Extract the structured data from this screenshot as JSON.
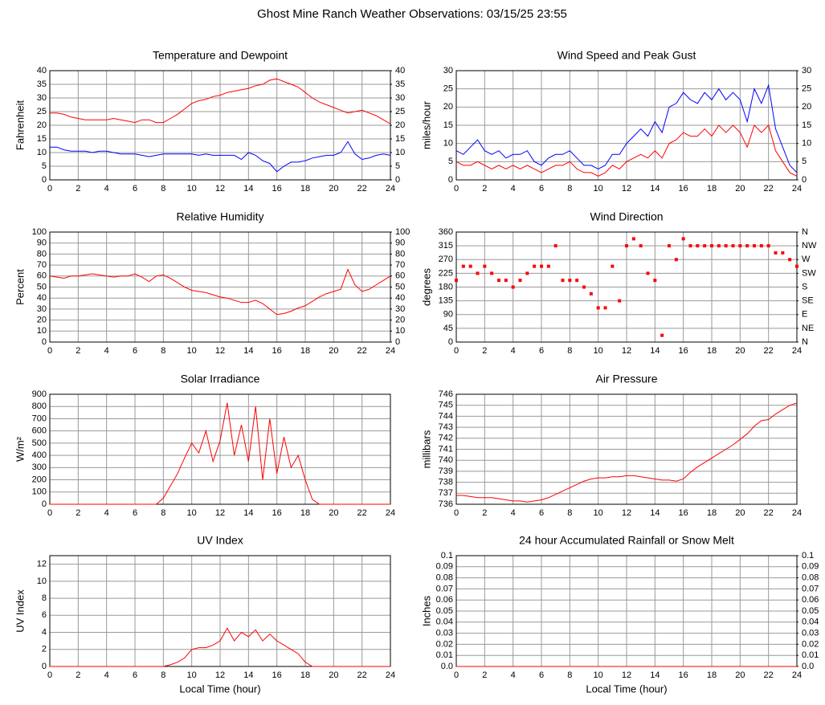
{
  "title": "Ghost Mine Ranch Weather Observations: 03/15/25 23:55",
  "chart_data": [
    {
      "type": "line",
      "title": "Temperature and Dewpoint",
      "y_label": "Fahrenheit",
      "x": [
        0,
        0.5,
        1,
        1.5,
        2,
        2.5,
        3,
        3.5,
        4,
        4.5,
        5,
        5.5,
        6,
        6.5,
        7,
        7.5,
        8,
        8.5,
        9,
        9.5,
        10,
        10.5,
        11,
        11.5,
        12,
        12.5,
        13,
        13.5,
        14,
        14.5,
        15,
        15.5,
        16,
        16.5,
        17,
        17.5,
        18,
        18.5,
        19,
        19.5,
        20,
        20.5,
        21,
        21.5,
        22,
        22.5,
        23,
        23.5,
        24
      ],
      "series": [
        {
          "color": "#ff0000",
          "values": [
            24.5,
            24.5,
            24,
            23,
            22.5,
            22,
            22,
            22,
            22,
            22.5,
            22,
            21.5,
            21,
            22,
            22,
            21,
            21,
            22.5,
            24,
            26,
            28,
            29,
            29.5,
            30.5,
            31,
            32,
            32.5,
            33,
            33.5,
            34.5,
            35,
            36.5,
            37,
            36,
            35,
            34,
            32,
            30,
            28.5,
            27.5,
            26.5,
            25.5,
            24.5,
            25,
            25.5,
            24.5,
            23.5,
            22,
            20.5
          ]
        },
        {
          "color": "#0000ff",
          "values": [
            12,
            12,
            11,
            10.5,
            10.5,
            10.5,
            10,
            10.5,
            10.5,
            10,
            9.5,
            9.5,
            9.5,
            9,
            8.5,
            9,
            9.5,
            9.5,
            9.5,
            9.5,
            9.5,
            9,
            9.5,
            9,
            9,
            9,
            9,
            7.5,
            10,
            9,
            7,
            6,
            3,
            5,
            6.5,
            6.5,
            7,
            8,
            8.5,
            9,
            9,
            10,
            14,
            9.5,
            7.5,
            8,
            9,
            9.5,
            9
          ]
        }
      ],
      "xlim": [
        0,
        24
      ],
      "xticks": [
        0,
        2,
        4,
        6,
        8,
        10,
        12,
        14,
        16,
        18,
        20,
        22,
        24
      ],
      "ylim": [
        0,
        40
      ],
      "yticks": [
        0,
        5,
        10,
        15,
        20,
        25,
        30,
        35,
        40
      ],
      "y2lim": [
        0,
        40
      ],
      "y2ticks": [
        0,
        5,
        10,
        15,
        20,
        25,
        30,
        35,
        40
      ],
      "grid": true
    },
    {
      "type": "line",
      "title": "Wind Speed and Peak Gust",
      "y_label": "miles/hour",
      "x": [
        0,
        0.5,
        1,
        1.5,
        2,
        2.5,
        3,
        3.5,
        4,
        4.5,
        5,
        5.5,
        6,
        6.5,
        7,
        7.5,
        8,
        8.5,
        9,
        9.5,
        10,
        10.5,
        11,
        11.5,
        12,
        12.5,
        13,
        13.5,
        14,
        14.5,
        15,
        15.5,
        16,
        16.5,
        17,
        17.5,
        18,
        18.5,
        19,
        19.5,
        20,
        20.5,
        21,
        21.5,
        22,
        22.5,
        23,
        23.5,
        24
      ],
      "series": [
        {
          "color": "#ff0000",
          "values": [
            5,
            4,
            4,
            5,
            4,
            3,
            4,
            3,
            4,
            3,
            4,
            3,
            2,
            3,
            4,
            4,
            5,
            3,
            2,
            2,
            1,
            2,
            4,
            3,
            5,
            6,
            7,
            6,
            8,
            6,
            10,
            11,
            13,
            12,
            12,
            14,
            12,
            15,
            13,
            15,
            13,
            9,
            15,
            13,
            15,
            8,
            5,
            2,
            1
          ]
        },
        {
          "color": "#0000ff",
          "values": [
            8,
            7,
            9,
            11,
            8,
            7,
            8,
            6,
            7,
            7,
            8,
            5,
            4,
            6,
            7,
            7,
            8,
            6,
            4,
            4,
            3,
            4,
            7,
            7,
            10,
            12,
            14,
            12,
            16,
            13,
            20,
            21,
            24,
            22,
            21,
            24,
            22,
            25,
            22,
            24,
            22,
            16,
            25,
            21,
            26,
            14,
            9,
            4,
            2
          ]
        }
      ],
      "xlim": [
        0,
        24
      ],
      "xticks": [
        0,
        2,
        4,
        6,
        8,
        10,
        12,
        14,
        16,
        18,
        20,
        22,
        24
      ],
      "ylim": [
        0,
        30
      ],
      "yticks": [
        0,
        5,
        10,
        15,
        20,
        25,
        30
      ],
      "y2lim": [
        0,
        30
      ],
      "y2ticks": [
        0,
        5,
        10,
        15,
        20,
        25,
        30
      ],
      "grid": true
    },
    {
      "type": "line",
      "title": "Relative Humidity",
      "y_label": "Percent",
      "x": [
        0,
        0.5,
        1,
        1.5,
        2,
        2.5,
        3,
        3.5,
        4,
        4.5,
        5,
        5.5,
        6,
        6.5,
        7,
        7.5,
        8,
        8.5,
        9,
        9.5,
        10,
        10.5,
        11,
        11.5,
        12,
        12.5,
        13,
        13.5,
        14,
        14.5,
        15,
        15.5,
        16,
        16.5,
        17,
        17.5,
        18,
        18.5,
        19,
        19.5,
        20,
        20.5,
        21,
        21.5,
        22,
        22.5,
        23,
        23.5,
        24
      ],
      "series": [
        {
          "color": "#ff0000",
          "values": [
            60,
            59,
            58,
            60,
            60,
            61,
            62,
            61,
            60,
            59,
            60,
            60,
            62,
            59,
            55,
            60,
            61,
            58,
            54,
            50,
            47,
            46,
            45,
            43,
            41,
            40,
            38,
            36,
            36,
            38,
            35,
            30,
            25,
            26,
            28,
            31,
            33,
            37,
            41,
            44,
            46,
            48,
            66,
            52,
            46,
            48,
            52,
            56,
            60
          ]
        }
      ],
      "xlim": [
        0,
        24
      ],
      "xticks": [
        0,
        2,
        4,
        6,
        8,
        10,
        12,
        14,
        16,
        18,
        20,
        22,
        24
      ],
      "ylim": [
        0,
        100
      ],
      "yticks": [
        0,
        10,
        20,
        30,
        40,
        50,
        60,
        70,
        80,
        90,
        100
      ],
      "y2lim": [
        0,
        100
      ],
      "y2ticks": [
        0,
        10,
        20,
        30,
        40,
        50,
        60,
        70,
        80,
        90,
        100
      ],
      "grid": true
    },
    {
      "type": "scatter",
      "title": "Wind Direction",
      "y_label": "degrees",
      "x": [
        0,
        0.5,
        1,
        1.5,
        2,
        2.5,
        3,
        3.5,
        4,
        4.5,
        5,
        5.5,
        6,
        6.5,
        7,
        7.5,
        8,
        8.5,
        9,
        9.5,
        10,
        10.5,
        11,
        11.5,
        12,
        12.5,
        13,
        13.5,
        14,
        14.5,
        15,
        15.5,
        16,
        16.5,
        17,
        17.5,
        18,
        18.5,
        19,
        19.5,
        20,
        20.5,
        21,
        21.5,
        22,
        22.5,
        23,
        23.5,
        24
      ],
      "series": [
        {
          "color": "#ff0000",
          "values": [
            202,
            248,
            248,
            225,
            248,
            225,
            202,
            202,
            180,
            202,
            225,
            248,
            248,
            248,
            315,
            202,
            202,
            202,
            180,
            158,
            112,
            112,
            248,
            135,
            315,
            338,
            315,
            225,
            202,
            22,
            315,
            270,
            338,
            315,
            315,
            315,
            315,
            315,
            315,
            315,
            315,
            315,
            315,
            315,
            315,
            292,
            292,
            270,
            248
          ]
        }
      ],
      "xlim": [
        0,
        24
      ],
      "xticks": [
        0,
        2,
        4,
        6,
        8,
        10,
        12,
        14,
        16,
        18,
        20,
        22,
        24
      ],
      "ylim": [
        0,
        360
      ],
      "yticks": [
        0,
        45,
        90,
        135,
        180,
        225,
        270,
        315,
        360
      ],
      "y2lim": [
        0,
        360
      ],
      "y2ticks": [
        {
          "value": 0,
          "label": "N"
        },
        {
          "value": 45,
          "label": "NE"
        },
        {
          "value": 90,
          "label": "E"
        },
        {
          "value": 135,
          "label": "SE"
        },
        {
          "value": 180,
          "label": "S"
        },
        {
          "value": 225,
          "label": "SW"
        },
        {
          "value": 270,
          "label": "W"
        },
        {
          "value": 315,
          "label": "NW"
        },
        {
          "value": 360,
          "label": "N"
        }
      ],
      "grid": true
    },
    {
      "type": "line",
      "title": "Solar Irradiance",
      "y_label": "W/m²",
      "x": [
        0,
        0.5,
        1,
        1.5,
        2,
        2.5,
        3,
        3.5,
        4,
        4.5,
        5,
        5.5,
        6,
        6.5,
        7,
        7.5,
        8,
        8.5,
        9,
        9.5,
        10,
        10.5,
        11,
        11.5,
        12,
        12.5,
        13,
        13.5,
        14,
        14.5,
        15,
        15.5,
        16,
        16.5,
        17,
        17.5,
        18,
        18.5,
        19,
        19.5,
        20,
        20.5,
        21,
        21.5,
        22,
        22.5,
        23,
        23.5,
        24
      ],
      "series": [
        {
          "color": "#ff0000",
          "values": [
            0,
            0,
            0,
            0,
            0,
            0,
            0,
            0,
            0,
            0,
            0,
            0,
            0,
            0,
            0,
            0,
            50,
            150,
            250,
            380,
            500,
            420,
            600,
            350,
            520,
            830,
            400,
            650,
            350,
            800,
            200,
            700,
            250,
            550,
            300,
            400,
            200,
            40,
            0,
            0,
            0,
            0,
            0,
            0,
            0,
            0,
            0,
            0,
            0
          ]
        }
      ],
      "xlim": [
        0,
        24
      ],
      "xticks": [
        0,
        2,
        4,
        6,
        8,
        10,
        12,
        14,
        16,
        18,
        20,
        22,
        24
      ],
      "ylim": [
        0,
        900
      ],
      "yticks": [
        0,
        100,
        200,
        300,
        400,
        500,
        600,
        700,
        800,
        900
      ],
      "grid": true
    },
    {
      "type": "line",
      "title": "Air Pressure",
      "y_label": "millibars",
      "x": [
        0,
        0.5,
        1,
        1.5,
        2,
        2.5,
        3,
        3.5,
        4,
        4.5,
        5,
        5.5,
        6,
        6.5,
        7,
        7.5,
        8,
        8.5,
        9,
        9.5,
        10,
        10.5,
        11,
        11.5,
        12,
        12.5,
        13,
        13.5,
        14,
        14.5,
        15,
        15.5,
        16,
        16.5,
        17,
        17.5,
        18,
        18.5,
        19,
        19.5,
        20,
        20.5,
        21,
        21.5,
        22,
        22.5,
        23,
        23.5,
        24
      ],
      "series": [
        {
          "color": "#ff0000",
          "values": [
            736.8,
            736.8,
            736.7,
            736.6,
            736.6,
            736.6,
            736.5,
            736.4,
            736.3,
            736.3,
            736.2,
            736.3,
            736.4,
            736.6,
            736.9,
            737.2,
            737.5,
            737.8,
            738.1,
            738.3,
            738.4,
            738.4,
            738.5,
            738.5,
            738.6,
            738.6,
            738.5,
            738.4,
            738.3,
            738.2,
            738.2,
            738.1,
            738.3,
            738.9,
            739.4,
            739.8,
            740.2,
            740.6,
            741.0,
            741.4,
            741.9,
            742.4,
            743.1,
            743.6,
            743.7,
            744.2,
            744.6,
            745.0,
            745.2
          ]
        }
      ],
      "xlim": [
        0,
        24
      ],
      "xticks": [
        0,
        2,
        4,
        6,
        8,
        10,
        12,
        14,
        16,
        18,
        20,
        22,
        24
      ],
      "ylim": [
        736,
        746
      ],
      "yticks": [
        736,
        737,
        738,
        739,
        740,
        741,
        742,
        743,
        744,
        745,
        746
      ],
      "grid": true
    },
    {
      "type": "line",
      "title": "UV Index",
      "y_label": "UV Index",
      "x_label": "Local Time (hour)",
      "x": [
        0,
        0.5,
        1,
        1.5,
        2,
        2.5,
        3,
        3.5,
        4,
        4.5,
        5,
        5.5,
        6,
        6.5,
        7,
        7.5,
        8,
        8.5,
        9,
        9.5,
        10,
        10.5,
        11,
        11.5,
        12,
        12.5,
        13,
        13.5,
        14,
        14.5,
        15,
        15.5,
        16,
        16.5,
        17,
        17.5,
        18,
        18.5,
        19,
        19.5,
        20,
        20.5,
        21,
        21.5,
        22,
        22.5,
        23,
        23.5,
        24
      ],
      "series": [
        {
          "color": "#ff0000",
          "values": [
            0,
            0,
            0,
            0,
            0,
            0,
            0,
            0,
            0,
            0,
            0,
            0,
            0,
            0,
            0,
            0,
            0,
            0.2,
            0.5,
            1,
            2,
            2.2,
            2.2,
            2.5,
            3,
            4.5,
            3,
            4,
            3.5,
            4.3,
            3,
            3.8,
            3,
            2.5,
            2,
            1.5,
            0.5,
            0,
            0,
            0,
            0,
            0,
            0,
            0,
            0,
            0,
            0,
            0,
            0
          ]
        }
      ],
      "xlim": [
        0,
        24
      ],
      "xticks": [
        0,
        2,
        4,
        6,
        8,
        10,
        12,
        14,
        16,
        18,
        20,
        22,
        24
      ],
      "ylim": [
        0,
        13
      ],
      "yticks": [
        0,
        2,
        4,
        6,
        8,
        10,
        12
      ],
      "grid": true
    },
    {
      "type": "line",
      "title": "24 hour Accumulated Rainfall or Snow Melt",
      "y_label": "Inches",
      "x_label": "Local Time (hour)",
      "x": [
        0,
        24
      ],
      "series": [
        {
          "color": "#ff0000",
          "values": [
            0,
            0
          ]
        }
      ],
      "xlim": [
        0,
        24
      ],
      "xticks": [
        0,
        2,
        4,
        6,
        8,
        10,
        12,
        14,
        16,
        18,
        20,
        22,
        24
      ],
      "ylim": [
        0,
        0.1
      ],
      "yticks": [
        {
          "value": 0,
          "label": "0.0"
        },
        0.01,
        0.02,
        0.03,
        0.04,
        0.05,
        0.06,
        0.07,
        0.08,
        0.09,
        0.1
      ],
      "y2lim": [
        0,
        0.1
      ],
      "y2ticks": [
        {
          "value": 0,
          "label": "0.0"
        },
        0.01,
        0.02,
        0.03,
        0.04,
        0.05,
        0.06,
        0.07,
        0.08,
        0.09,
        0.1
      ],
      "grid": true
    }
  ]
}
